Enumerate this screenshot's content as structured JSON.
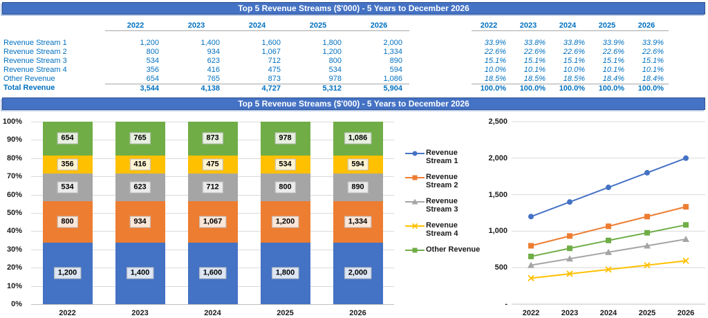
{
  "header": {
    "title": "Top 5 Revenue Streams ($'000) - 5 Years to December 2026"
  },
  "years": [
    "2022",
    "2023",
    "2024",
    "2025",
    "2026"
  ],
  "revenue_table": {
    "rows": [
      {
        "label": "Revenue Stream 1",
        "values": [
          "1,200",
          "1,400",
          "1,600",
          "1,800",
          "2,000"
        ]
      },
      {
        "label": "Revenue Stream 2",
        "values": [
          "800",
          "934",
          "1,067",
          "1,200",
          "1,334"
        ]
      },
      {
        "label": "Revenue Stream 3",
        "values": [
          "534",
          "623",
          "712",
          "800",
          "890"
        ]
      },
      {
        "label": "Revenue Stream 4",
        "values": [
          "356",
          "416",
          "475",
          "534",
          "594"
        ]
      },
      {
        "label": "Other Revenue",
        "values": [
          "654",
          "765",
          "873",
          "978",
          "1,086"
        ]
      }
    ],
    "total_row": {
      "label": "Total Revenue",
      "values": [
        "3,544",
        "4,138",
        "4,727",
        "5,312",
        "5,904"
      ]
    }
  },
  "percent_table": {
    "rows": [
      {
        "values": [
          "33.9%",
          "33.8%",
          "33.8%",
          "33.9%",
          "33.9%"
        ]
      },
      {
        "values": [
          "22.6%",
          "22.6%",
          "22.6%",
          "22.6%",
          "22.6%"
        ]
      },
      {
        "values": [
          "15.1%",
          "15.1%",
          "15.1%",
          "15.1%",
          "15.1%"
        ]
      },
      {
        "values": [
          "10.0%",
          "10.1%",
          "10.0%",
          "10.1%",
          "10.1%"
        ]
      },
      {
        "values": [
          "18.5%",
          "18.5%",
          "18.5%",
          "18.4%",
          "18.4%"
        ]
      }
    ],
    "total_row": {
      "values": [
        "100.0%",
        "100.0%",
        "100.0%",
        "100.0%",
        "100.0%"
      ]
    }
  },
  "colors": {
    "title_bar_bg": "#4472C4",
    "title_bar_border": "#2F528F",
    "table_text": "#0070C0",
    "rule_line": "#A6A6A6",
    "gridline": "#D9D9D9",
    "axis_line": "#BFBFBF",
    "axis_text": "#1A1A1A",
    "series": [
      "#4472C4",
      "#ED7D31",
      "#A5A5A5",
      "#FFC000",
      "#70AD47"
    ]
  },
  "legend": {
    "items": [
      {
        "label": "Revenue Stream 1",
        "color": "#4472C4",
        "marker": "circle"
      },
      {
        "label": "Revenue Stream 2",
        "color": "#ED7D31",
        "marker": "square"
      },
      {
        "label": "Revenue Stream 3",
        "color": "#A5A5A5",
        "marker": "triangle"
      },
      {
        "label": "Revenue Stream 4",
        "color": "#FFC000",
        "marker": "x"
      },
      {
        "label": "Other Revenue",
        "color": "#70AD47",
        "marker": "square"
      }
    ]
  },
  "chart_data": [
    {
      "type": "bar",
      "subtype": "100%-stacked-column",
      "title": "Top 5 Revenue Streams ($'000) - 5 Years to December 2026",
      "categories": [
        "2022",
        "2023",
        "2024",
        "2025",
        "2026"
      ],
      "series": [
        {
          "name": "Revenue Stream 1",
          "color": "#4472C4",
          "label_bg": "#DCE6F4",
          "values": [
            1200,
            1400,
            1600,
            1800,
            2000
          ],
          "labels": [
            "1,200",
            "1,400",
            "1,600",
            "1,800",
            "2,000"
          ]
        },
        {
          "name": "Revenue Stream 2",
          "color": "#ED7D31",
          "label_bg": "#FBE6D8",
          "values": [
            800,
            934,
            1067,
            1200,
            1334
          ],
          "labels": [
            "800",
            "934",
            "1,067",
            "1,200",
            "1,334"
          ]
        },
        {
          "name": "Revenue Stream 3",
          "color": "#A5A5A5",
          "label_bg": "#EBEBEB",
          "values": [
            534,
            623,
            712,
            800,
            890
          ],
          "labels": [
            "534",
            "623",
            "712",
            "800",
            "890"
          ]
        },
        {
          "name": "Revenue Stream 4",
          "color": "#FFC000",
          "label_bg": "#FFF3D1",
          "values": [
            356,
            416,
            475,
            534,
            594
          ],
          "labels": [
            "356",
            "416",
            "475",
            "534",
            "594"
          ]
        },
        {
          "name": "Other Revenue",
          "color": "#70AD47",
          "label_bg": "#E7F0DE",
          "values": [
            654,
            765,
            873,
            978,
            1086
          ],
          "labels": [
            "654",
            "765",
            "873",
            "978",
            "1,086"
          ]
        }
      ],
      "totals": [
        3544,
        4138,
        4727,
        5312,
        5904
      ],
      "ylim": [
        0,
        100
      ],
      "y_ticks": [
        "0%",
        "10%",
        "20%",
        "30%",
        "40%",
        "50%",
        "60%",
        "70%",
        "80%",
        "90%",
        "100%"
      ],
      "grid": true,
      "legend_position": "right-of-chart"
    },
    {
      "type": "line",
      "title": "Top 5 Revenue Streams ($'000) - 5 Years to December 2026",
      "x": [
        "2022",
        "2023",
        "2024",
        "2025",
        "2026"
      ],
      "series": [
        {
          "name": "Revenue Stream 1",
          "color": "#4472C4",
          "marker": "circle",
          "values": [
            1200,
            1400,
            1600,
            1800,
            2000
          ]
        },
        {
          "name": "Revenue Stream 2",
          "color": "#ED7D31",
          "marker": "square",
          "values": [
            800,
            934,
            1067,
            1200,
            1334
          ]
        },
        {
          "name": "Revenue Stream 3",
          "color": "#A5A5A5",
          "marker": "triangle",
          "values": [
            534,
            623,
            712,
            800,
            890
          ]
        },
        {
          "name": "Revenue Stream 4",
          "color": "#FFC000",
          "marker": "x",
          "values": [
            356,
            416,
            475,
            534,
            594
          ]
        },
        {
          "name": "Other Revenue",
          "color": "#70AD47",
          "marker": "square",
          "values": [
            654,
            765,
            873,
            978,
            1086
          ]
        }
      ],
      "ylim": [
        0,
        2500
      ],
      "y_ticks": [
        "-",
        "500",
        "1,000",
        "1,500",
        "2,000",
        "2,500"
      ],
      "grid": true,
      "legend_position": "left-of-chart"
    }
  ]
}
